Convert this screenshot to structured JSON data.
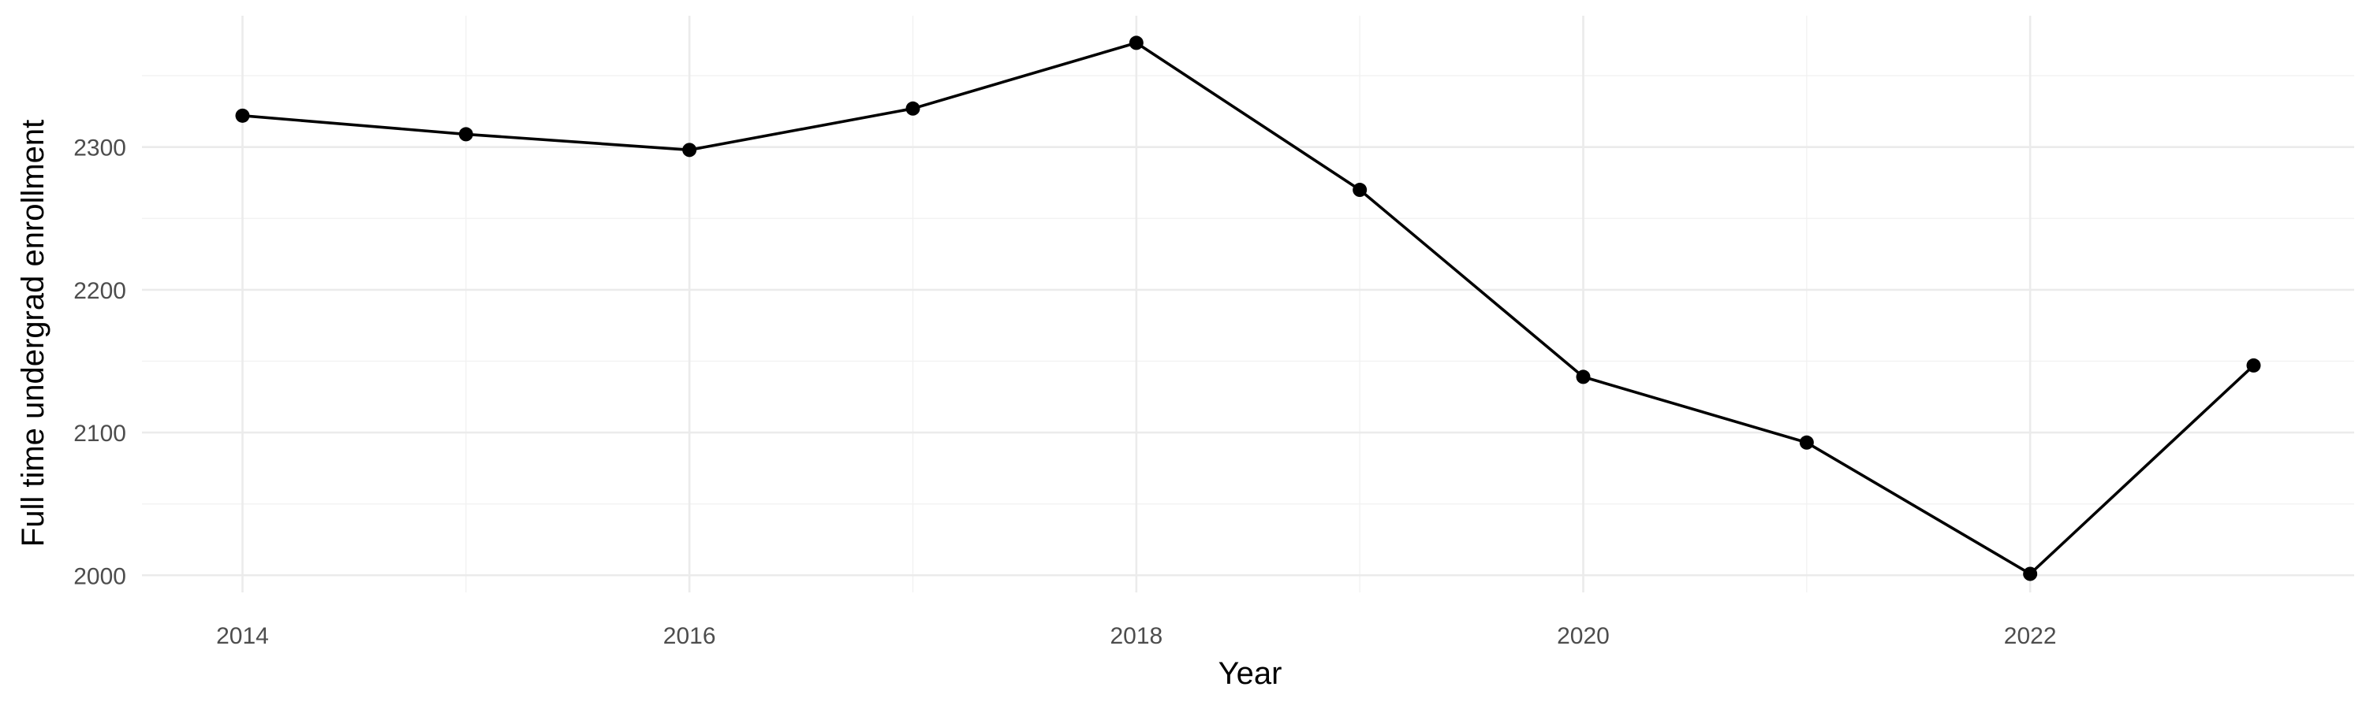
{
  "chart_data": {
    "type": "line",
    "title": "",
    "xlabel": "Year",
    "ylabel": "Full time undergrad enrollment",
    "x": [
      2014,
      2015,
      2016,
      2017,
      2018,
      2019,
      2020,
      2021,
      2022,
      2023
    ],
    "series": [
      {
        "values": [
          2322,
          2309,
          2298,
          2327,
          2373,
          2270,
          2139,
          2093,
          2001,
          2147
        ]
      }
    ],
    "xlim": [
      2013.55,
      2023.45
    ],
    "ylim": [
      1988,
      2392
    ],
    "x_ticks": [
      2014,
      2016,
      2018,
      2020,
      2022
    ],
    "y_ticks": [
      2000,
      2100,
      2200,
      2300
    ],
    "grid": true,
    "legend": "none",
    "colors": {
      "line": "#000000",
      "grid": "#ebebeb"
    }
  }
}
